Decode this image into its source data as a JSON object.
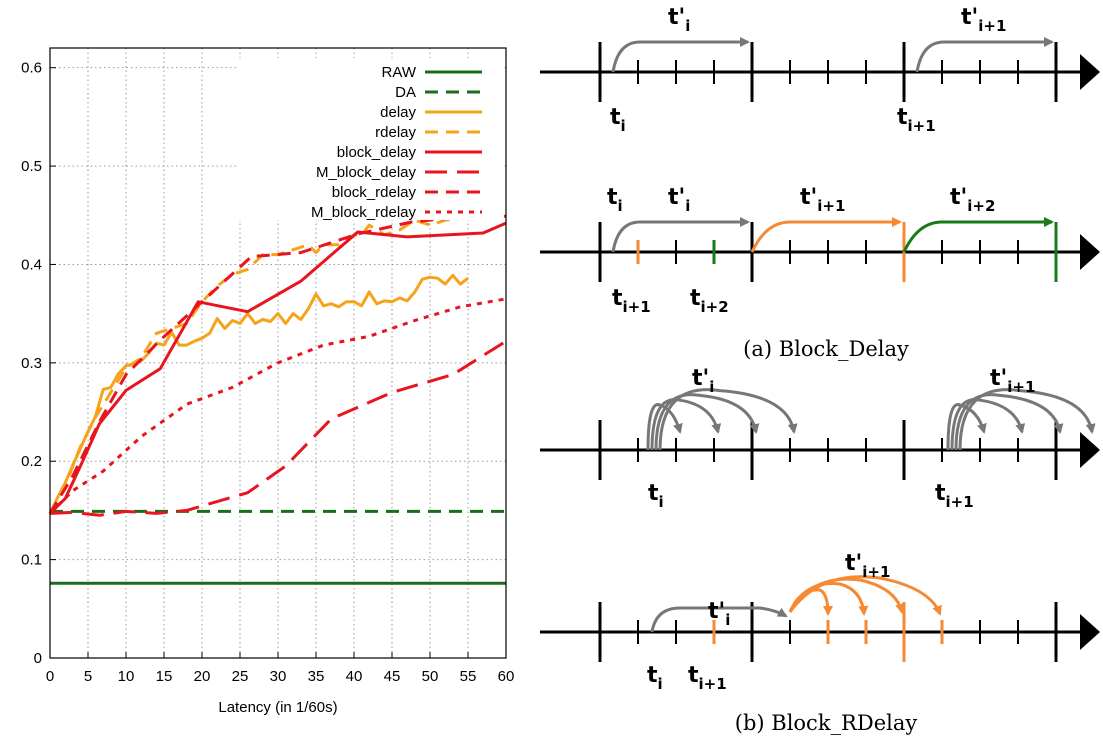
{
  "colors": {
    "dark_green": "#1a6e1a",
    "orange": "#f5a31a",
    "red": "#e8141e",
    "grey": "#777777",
    "diagram_orange": "#f58a33",
    "diagram_green": "#197a19"
  },
  "chart_data": {
    "type": "line",
    "xlabel": "Latency (in 1/60s)",
    "ylabel": "",
    "xlim": [
      0,
      60
    ],
    "ylim": [
      0,
      0.62
    ],
    "x_ticks": [
      "0",
      "5",
      "10",
      "15",
      "20",
      "25",
      "30",
      "35",
      "40",
      "45",
      "50",
      "55",
      "60"
    ],
    "y_ticks": [
      "0",
      "0.1",
      "0.2",
      "0.3",
      "0.4",
      "0.5",
      "0.6"
    ],
    "grid": true,
    "legend_position": "top-right",
    "series": [
      {
        "name": "RAW",
        "color": "#1a6e1a",
        "dash": "solid",
        "x": [
          0,
          60
        ],
        "y": [
          0.076,
          0.076
        ]
      },
      {
        "name": "DA",
        "color": "#1a6e1a",
        "dash": "dashed",
        "x": [
          0,
          60
        ],
        "y": [
          0.149,
          0.149
        ]
      },
      {
        "name": "delay",
        "color": "#f5a31a",
        "dash": "solid",
        "x": [
          0,
          1,
          2,
          3,
          4,
          5,
          6,
          7,
          8,
          9,
          10,
          11,
          12,
          13,
          14,
          15,
          16,
          17,
          18,
          19,
          20,
          21,
          22,
          23,
          24,
          25,
          26,
          27,
          28,
          29,
          30,
          31,
          32,
          33,
          34,
          35,
          36,
          37,
          38,
          39,
          40,
          41,
          42,
          43,
          44,
          45,
          46,
          47,
          48,
          49,
          50,
          51,
          52,
          53,
          54,
          55
        ],
        "y": [
          0.147,
          0.163,
          0.178,
          0.196,
          0.213,
          0.23,
          0.246,
          0.273,
          0.275,
          0.289,
          0.297,
          0.299,
          0.302,
          0.31,
          0.32,
          0.318,
          0.331,
          0.318,
          0.318,
          0.322,
          0.325,
          0.33,
          0.345,
          0.335,
          0.343,
          0.34,
          0.35,
          0.34,
          0.344,
          0.342,
          0.35,
          0.34,
          0.35,
          0.344,
          0.355,
          0.37,
          0.358,
          0.36,
          0.357,
          0.362,
          0.362,
          0.358,
          0.372,
          0.36,
          0.363,
          0.362,
          0.366,
          0.363,
          0.372,
          0.385,
          0.387,
          0.386,
          0.38,
          0.389,
          0.38,
          0.386
        ]
      },
      {
        "name": "rdelay",
        "color": "#f5a31a",
        "dash": "dashed",
        "x": [
          0,
          2,
          4,
          6,
          8,
          10,
          12,
          14,
          16,
          18,
          20,
          22,
          24,
          26,
          28,
          30,
          32,
          34,
          35,
          36,
          38,
          40,
          41,
          42,
          44,
          46,
          48,
          50,
          52,
          54,
          55
        ],
        "y": [
          0.147,
          0.175,
          0.215,
          0.245,
          0.27,
          0.295,
          0.305,
          0.33,
          0.335,
          0.34,
          0.362,
          0.378,
          0.39,
          0.395,
          0.41,
          0.41,
          0.415,
          0.42,
          0.412,
          0.42,
          0.42,
          0.43,
          0.43,
          0.44,
          0.43,
          0.435,
          0.445,
          0.44,
          0.445,
          0.447,
          0.452
        ]
      },
      {
        "name": "block_delay",
        "color": "#e8141e",
        "dash": "solid",
        "x": [
          0,
          2,
          4,
          6.5,
          10,
          14.5,
          19.5,
          26,
          33,
          40.5,
          47,
          57,
          60
        ],
        "y": [
          0.147,
          0.162,
          0.195,
          0.238,
          0.272,
          0.294,
          0.362,
          0.352,
          0.383,
          0.433,
          0.428,
          0.432,
          0.442
        ]
      },
      {
        "name": "M_block_delay",
        "color": "#e8141e",
        "dash": "longdash",
        "x": [
          0,
          3,
          6.5,
          10,
          14,
          18,
          26,
          31,
          37,
          45,
          53,
          60
        ],
        "y": [
          0.147,
          0.148,
          0.145,
          0.149,
          0.147,
          0.15,
          0.168,
          0.195,
          0.243,
          0.27,
          0.288,
          0.322
        ]
      },
      {
        "name": "block_rdelay",
        "color": "#e8141e",
        "dash": "dashed",
        "x": [
          0,
          3,
          6.5,
          10,
          14.5,
          20,
          26.5,
          33,
          40.5,
          47.5,
          55,
          60
        ],
        "y": [
          0.147,
          0.185,
          0.24,
          0.288,
          0.323,
          0.362,
          0.408,
          0.412,
          0.431,
          0.443,
          0.449,
          0.449
        ]
      },
      {
        "name": "M_block_rdelay",
        "color": "#e8141e",
        "dash": "dotted",
        "x": [
          0,
          3,
          7,
          12,
          18,
          24,
          30,
          36,
          42,
          48,
          54,
          60
        ],
        "y": [
          0.147,
          0.17,
          0.19,
          0.225,
          0.258,
          0.275,
          0.3,
          0.318,
          0.327,
          0.343,
          0.357,
          0.365
        ]
      }
    ]
  },
  "diagram": {
    "captions": [
      "(a) Block_Delay",
      "(b) Block_RDelay"
    ],
    "labels": {
      "t_i": {
        "main": "t",
        "sub": "i"
      },
      "t_i1": {
        "main": "t",
        "sub": "i+1"
      },
      "t_i2": {
        "main": "t",
        "sub": "i+2"
      },
      "tp_i": {
        "main": "t'",
        "sub": "i"
      },
      "tp_i1": {
        "main": "t'",
        "sub": "i+1"
      },
      "tp_i2": {
        "main": "t'",
        "sub": "i+2"
      }
    }
  }
}
